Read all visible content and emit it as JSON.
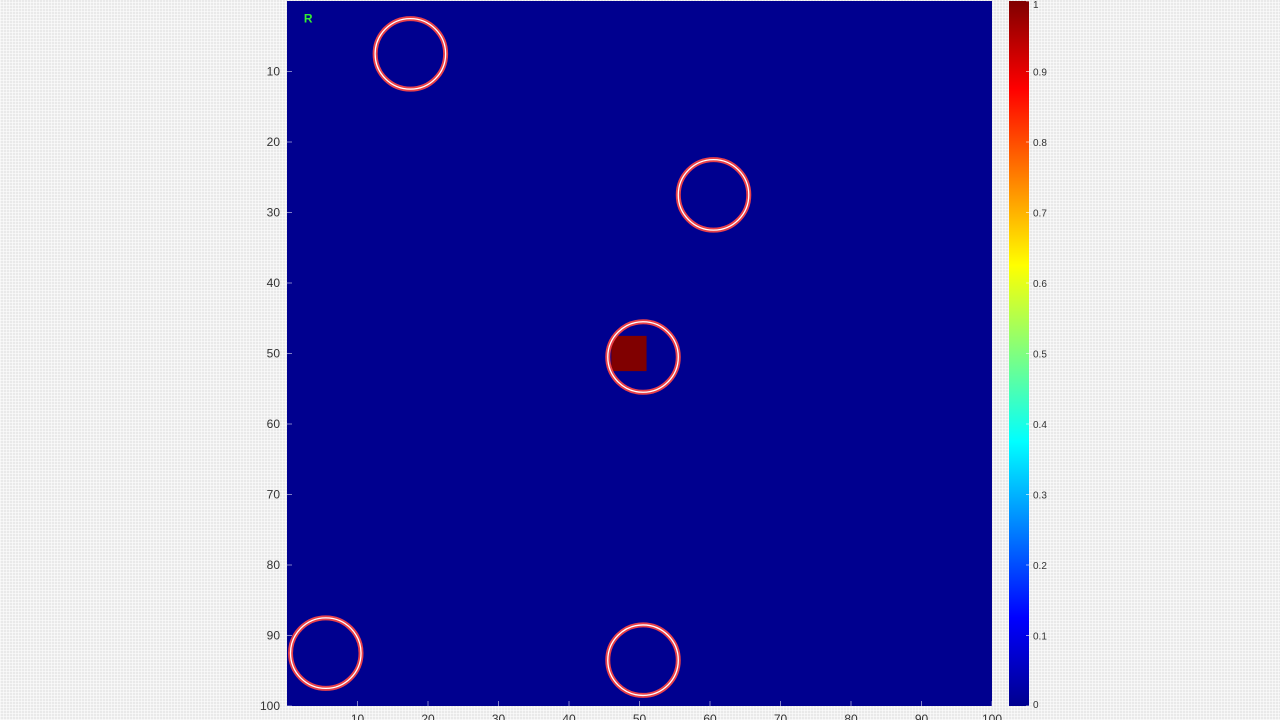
{
  "chart_data": {
    "type": "heatmap",
    "title": "",
    "xlabel": "",
    "ylabel": "",
    "xlim": [
      0,
      100
    ],
    "ylim": [
      0,
      100
    ],
    "y_direction": "reversed",
    "grid": false,
    "background_value": 0,
    "x_ticks": [
      "10",
      "20",
      "30",
      "40",
      "50",
      "60",
      "70",
      "80",
      "90",
      "100"
    ],
    "y_ticks": [
      "10",
      "20",
      "30",
      "40",
      "50",
      "60",
      "70",
      "80",
      "90",
      "100"
    ],
    "hot_cells": [
      {
        "x_range": [
          46,
          51
        ],
        "y_range": [
          47.5,
          52.5
        ],
        "value": 1
      }
    ],
    "circles": [
      {
        "x": 17.5,
        "y": 7.5,
        "r": 5
      },
      {
        "x": 60.5,
        "y": 27.5,
        "r": 5
      },
      {
        "x": 50.5,
        "y": 50.5,
        "r": 5
      },
      {
        "x": 5.5,
        "y": 92.5,
        "r": 5
      },
      {
        "x": 50.5,
        "y": 93.5,
        "r": 5
      }
    ],
    "marker": {
      "label": "R",
      "x": 3,
      "y": 2.5,
      "color": "#33ee33"
    },
    "circle_color": "#e8404a",
    "colorbar": {
      "colormap": "jet",
      "range": [
        0,
        1
      ],
      "ticks": [
        "0",
        "0.1",
        "0.2",
        "0.3",
        "0.4",
        "0.5",
        "0.6",
        "0.7",
        "0.8",
        "0.9",
        "1"
      ]
    }
  },
  "colors": {
    "background_low": "#00008f",
    "cell_high": "#800000",
    "circle_outer": "#e8404a",
    "circle_inner": "#ffffff"
  }
}
